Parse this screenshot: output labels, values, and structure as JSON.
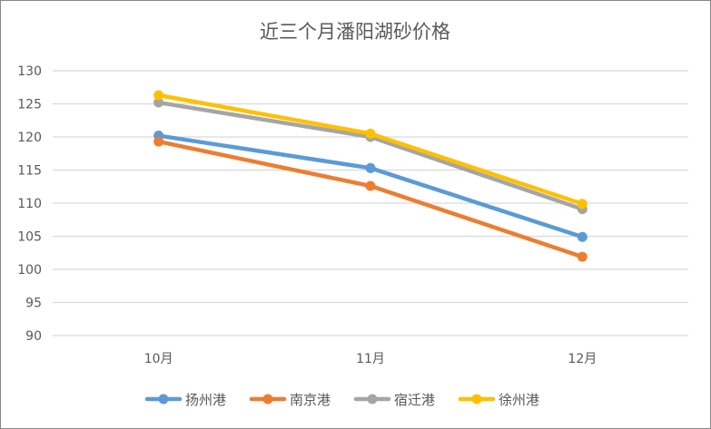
{
  "chart_data": {
    "type": "line",
    "title": "近三个月潘阳湖砂价格",
    "xlabel": "",
    "ylabel": "",
    "categories": [
      "10月",
      "11月",
      "12月"
    ],
    "ylim": [
      90,
      130
    ],
    "yticks": [
      90,
      95,
      100,
      105,
      110,
      115,
      120,
      125,
      130
    ],
    "grid": true,
    "legend": "bottom",
    "series": [
      {
        "name": "扬州港",
        "color": "#5B9BD5",
        "values": [
          120.2,
          115.3,
          104.9
        ]
      },
      {
        "name": "南京港",
        "color": "#ED7D31",
        "values": [
          119.3,
          112.6,
          101.9
        ]
      },
      {
        "name": "宿迁港",
        "color": "#A5A5A5",
        "values": [
          125.2,
          120.0,
          109.1
        ]
      },
      {
        "name": "徐州港",
        "color": "#FFC000",
        "values": [
          126.3,
          120.5,
          109.9
        ]
      }
    ]
  }
}
